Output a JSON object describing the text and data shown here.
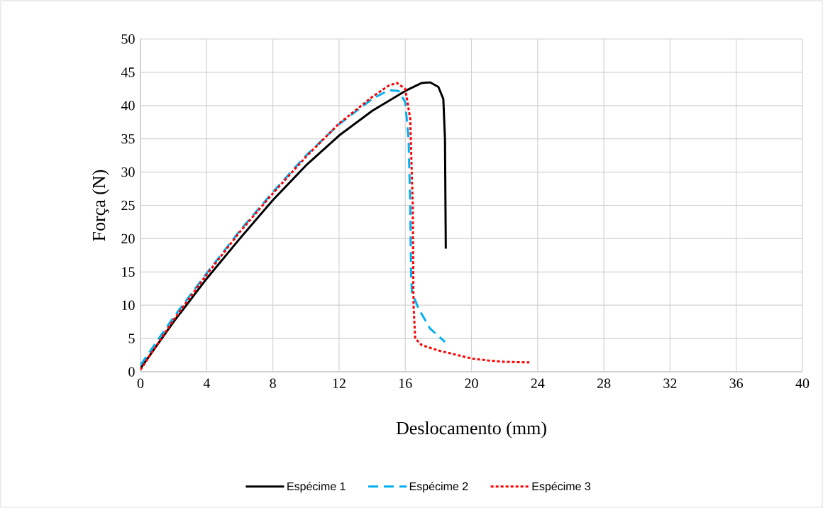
{
  "chart_data": {
    "type": "line",
    "xlabel": "Deslocamento (mm)",
    "ylabel": "Força (N)",
    "xlim": [
      0,
      40
    ],
    "ylim": [
      0,
      50
    ],
    "xticks": [
      0,
      4,
      8,
      12,
      16,
      20,
      24,
      28,
      32,
      36,
      40
    ],
    "yticks": [
      0,
      5,
      10,
      15,
      20,
      25,
      30,
      35,
      40,
      45,
      50
    ],
    "grid": true,
    "legend": "bottom",
    "marker": "none",
    "series": [
      {
        "name": "Espécime 1",
        "color": "#000000",
        "line_style": "solid",
        "x": [
          0,
          2,
          4,
          6,
          8,
          10,
          12,
          14,
          16,
          17,
          17.5,
          18,
          18.3,
          18.4,
          18.45
        ],
        "values": [
          0.5,
          7.5,
          14,
          20,
          25.8,
          31,
          35.5,
          39.2,
          42.2,
          43.4,
          43.5,
          42.8,
          41,
          35,
          18.5
        ]
      },
      {
        "name": "Espécime 2",
        "color": "#00b0f0",
        "line_style": "dashed",
        "x": [
          0,
          2,
          4,
          6,
          8,
          10,
          12,
          14,
          15,
          15.6,
          16,
          16.2,
          16.3,
          16.35,
          16.4,
          16.8,
          17.5,
          18.4
        ],
        "values": [
          1,
          8.2,
          14.8,
          21.2,
          27,
          32.5,
          37.2,
          41,
          42.3,
          42.2,
          40.5,
          35,
          25,
          15,
          12,
          9.5,
          6.5,
          4.5
        ]
      },
      {
        "name": "Espécime 3",
        "color": "#ff0000",
        "line_style": "dotted",
        "x": [
          0,
          2,
          4,
          6,
          8,
          10,
          12,
          14,
          15,
          15.5,
          16,
          16.3,
          16.45,
          16.5,
          16.6,
          17,
          18,
          19,
          20,
          21,
          22,
          23.5
        ],
        "values": [
          0.3,
          7.8,
          14.6,
          21,
          26.8,
          32.3,
          37.3,
          41.3,
          43,
          43.4,
          42.5,
          38,
          25,
          10,
          5,
          4,
          3.2,
          2.6,
          2,
          1.7,
          1.5,
          1.4
        ]
      }
    ]
  }
}
